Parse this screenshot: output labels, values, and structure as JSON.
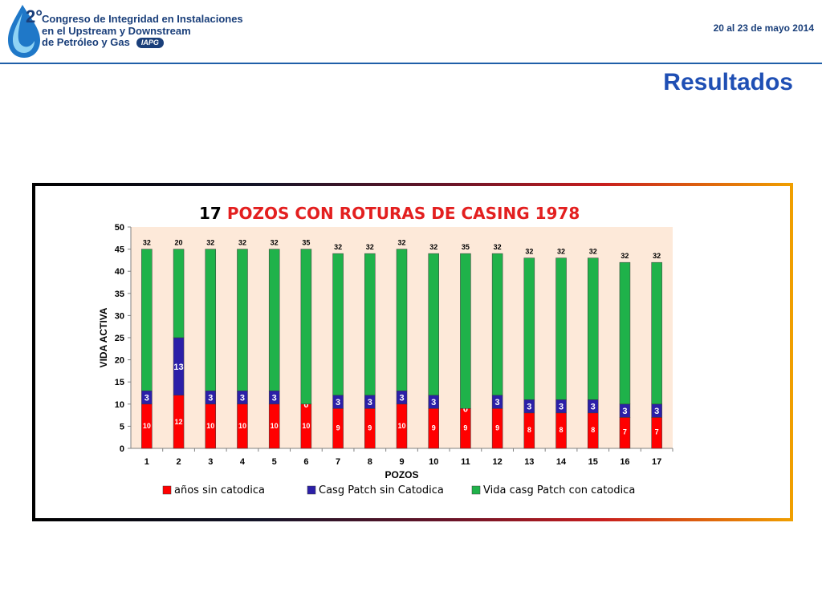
{
  "header": {
    "logo_number": "2°",
    "congress_lines": [
      "Congreso de Integridad en Instalaciones",
      "en el Upstream y Downstream",
      "de Petróleo y Gas"
    ],
    "badge": "IAPG",
    "date": "20 al 23 de mayo 2014"
  },
  "page_title": "Resultados",
  "colors": {
    "accent": "#1f4fb4",
    "red": "#ff0000",
    "blue": "#2b1fa8",
    "green": "#1fb24a",
    "plot_bg": "#fde9d9"
  },
  "chart_data": {
    "type": "bar",
    "stacked": true,
    "title_number": "17",
    "title_text": "POZOS  CON ROTURAS DE CASING    1978",
    "xlabel": "POZOS",
    "ylabel": "VIDA ACTIVA",
    "ylim": [
      0,
      50
    ],
    "yticks": [
      0,
      5,
      10,
      15,
      20,
      25,
      30,
      35,
      40,
      45,
      50
    ],
    "categories": [
      "1",
      "2",
      "3",
      "4",
      "5",
      "6",
      "7",
      "8",
      "9",
      "10",
      "11",
      "12",
      "13",
      "14",
      "15",
      "16",
      "17"
    ],
    "series": [
      {
        "name": "años sin catodica",
        "values": [
          10,
          12,
          10,
          10,
          10,
          10,
          9,
          9,
          10,
          9,
          9,
          9,
          8,
          8,
          8,
          7,
          7
        ]
      },
      {
        "name": "Casg Patch sin  Catodica",
        "values": [
          3,
          13,
          3,
          3,
          3,
          0,
          3,
          3,
          3,
          3,
          0,
          3,
          3,
          3,
          3,
          3,
          3
        ]
      },
      {
        "name": "Vida casg Patch con catodica",
        "values": [
          32,
          20,
          32,
          32,
          32,
          35,
          32,
          32,
          32,
          32,
          35,
          32,
          32,
          32,
          32,
          32,
          32
        ]
      }
    ],
    "grid": false,
    "legend_position": "bottom"
  }
}
